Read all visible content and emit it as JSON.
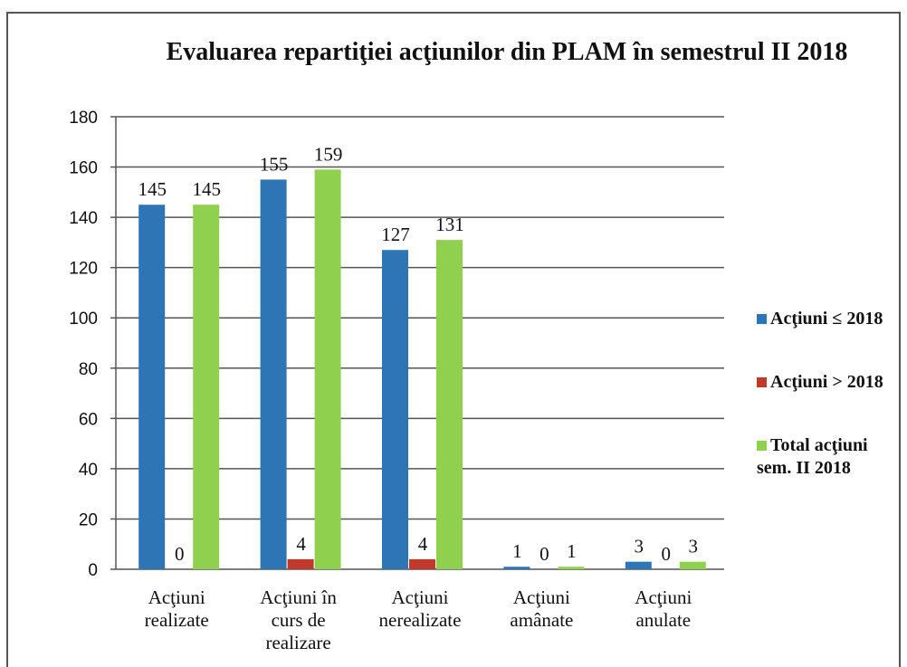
{
  "chart_data": {
    "type": "bar",
    "title": "Evaluarea repartiţiei acţiunilor din PLAM în semestrul II 2018",
    "categories": [
      "Acţiuni realizate",
      "Acţiuni în curs de realizare",
      "Acţiuni nerealizate",
      "Acţiuni amânate",
      "Acţiuni anulate"
    ],
    "series": [
      {
        "name": "Acţiuni ≤ 2018",
        "color": "#2e75b6",
        "values": [
          145,
          155,
          127,
          1,
          3
        ]
      },
      {
        "name": "Acţiuni > 2018",
        "color": "#c0392b",
        "values": [
          0,
          4,
          4,
          0,
          0
        ]
      },
      {
        "name": "Total acţiuni sem. II 2018",
        "color": "#8fd14f",
        "values": [
          145,
          159,
          131,
          1,
          3
        ]
      }
    ],
    "ylim": [
      0,
      180
    ],
    "yticks": [
      0,
      20,
      40,
      60,
      80,
      100,
      120,
      140,
      160,
      180
    ],
    "grid": true,
    "legend": "right"
  }
}
